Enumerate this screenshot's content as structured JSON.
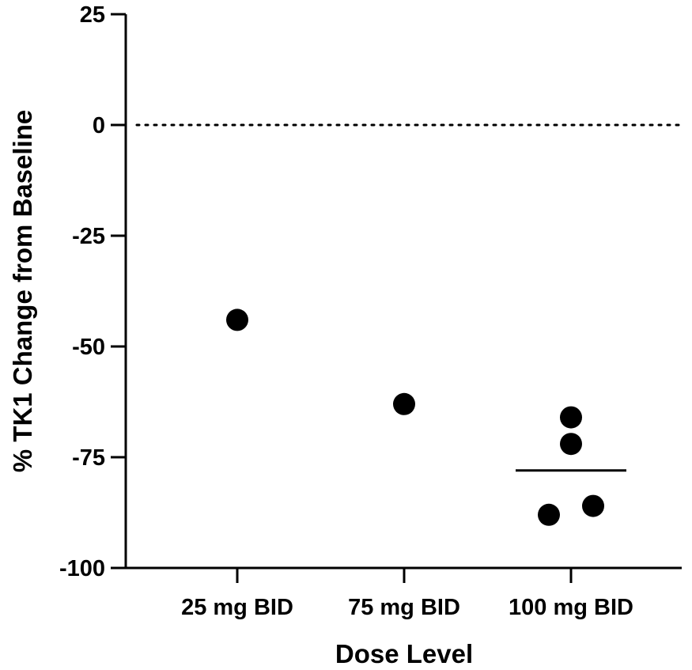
{
  "chart_data": {
    "type": "scatter",
    "xlabel": "Dose Level",
    "ylabel": "% TK1  Change from Baseline",
    "categories": [
      "25 mg BID",
      "75 mg BID",
      "100 mg BID"
    ],
    "ylim": [
      -100,
      25
    ],
    "yticks": [
      "25",
      "0",
      "-25",
      "-50",
      "-75",
      "-100"
    ],
    "ytick_values": [
      25,
      0,
      -25,
      -50,
      -75,
      -100
    ],
    "reference_line": {
      "y": 0,
      "style": "dotted"
    },
    "grid": false,
    "legend": "none",
    "points": [
      {
        "category": "25 mg BID",
        "y": -44
      },
      {
        "category": "75 mg BID",
        "y": -63
      },
      {
        "category": "100 mg BID",
        "y": -66
      },
      {
        "category": "100 mg BID",
        "y": -72
      },
      {
        "category": "100 mg BID",
        "y": -86
      },
      {
        "category": "100 mg BID",
        "y": -88
      }
    ],
    "mean_line": {
      "category": "100 mg BID",
      "y": -78
    },
    "marker_color": "#000000"
  }
}
